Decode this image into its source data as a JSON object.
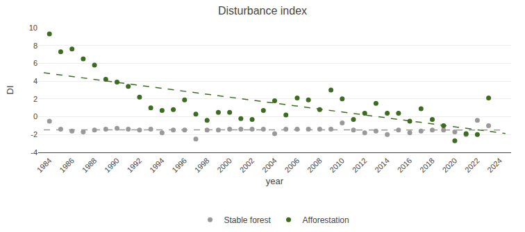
{
  "chart_data": {
    "type": "scatter",
    "title": "Disturbance index",
    "xlabel": "year",
    "ylabel": "DI",
    "xlim": [
      1983,
      2025
    ],
    "xticks": [
      1984,
      1986,
      1988,
      1990,
      1992,
      1994,
      1996,
      1998,
      2000,
      2002,
      2004,
      2006,
      2008,
      2010,
      2012,
      2014,
      2016,
      2018,
      2020,
      2022,
      2024
    ],
    "ylim": [
      -4,
      10
    ],
    "yticks": [
      -4,
      -2,
      0,
      2,
      4,
      6,
      8,
      10
    ],
    "grid": true,
    "legend": "bottom",
    "series": [
      {
        "name": "Stable forest",
        "color": "#999999",
        "marker": "circle",
        "x": [
          1984,
          1985,
          1986,
          1987,
          1988,
          1989,
          1990,
          1991,
          1992,
          1993,
          1994,
          1995,
          1996,
          1997,
          1998,
          1999,
          2000,
          2001,
          2002,
          2003,
          2004,
          2005,
          2006,
          2007,
          2008,
          2009,
          2010,
          2011,
          2012,
          2013,
          2014,
          2015,
          2016,
          2017,
          2018,
          2019,
          2020,
          2021,
          2022,
          2023
        ],
        "values": [
          -0.5,
          -1.4,
          -1.6,
          -1.7,
          -1.5,
          -1.4,
          -1.3,
          -1.4,
          -1.5,
          -1.4,
          -1.8,
          -1.5,
          -1.5,
          -2.5,
          -1.5,
          -1.5,
          -1.4,
          -1.4,
          -1.4,
          -1.4,
          -1.9,
          -1.4,
          -1.4,
          -1.4,
          -1.4,
          -1.4,
          -0.7,
          -1.5,
          -1.8,
          -1.6,
          -2.0,
          -1.5,
          -1.8,
          -1.6,
          -1.5,
          -1.5,
          -1.7,
          -2.0,
          -0.4,
          -1.0
        ],
        "trendline": {
          "color": "#999999",
          "line_style": "dashed",
          "x": [
            1983.5,
            2024.5
          ],
          "values": [
            -1.4653049,
            -1.4903049
          ]
        }
      },
      {
        "name": "Afforestation",
        "color": "#3d6b21",
        "marker": "circle",
        "x": [
          1984,
          1985,
          1986,
          1987,
          1988,
          1989,
          1990,
          1991,
          1992,
          1993,
          1994,
          1995,
          1996,
          1997,
          1998,
          1999,
          2000,
          2001,
          2002,
          2003,
          2004,
          2005,
          2006,
          2007,
          2008,
          2009,
          2010,
          2011,
          2012,
          2013,
          2014,
          2015,
          2016,
          2017,
          2018,
          2019,
          2020,
          2021,
          2022,
          2023
        ],
        "values": [
          9.3,
          7.3,
          7.6,
          6.5,
          5.8,
          4.2,
          3.9,
          3.4,
          2.2,
          1.0,
          0.7,
          0.8,
          1.9,
          0.3,
          -0.4,
          0.5,
          0.5,
          -0.2,
          -0.3,
          0.7,
          1.8,
          0.2,
          2.1,
          1.9,
          0.8,
          3.0,
          2.0,
          -0.3,
          0.4,
          1.5,
          0.4,
          0.4,
          -0.5,
          0.9,
          -0.3,
          -1.0,
          -2.7,
          -1.9,
          -2.0,
          2.1
        ],
        "trendline": {
          "color": "#3d6b21",
          "line_style": "dashed",
          "x": [
            1983.5,
            2024.5
          ],
          "values": [
            4.9395169,
            -1.8808677
          ]
        }
      }
    ]
  }
}
